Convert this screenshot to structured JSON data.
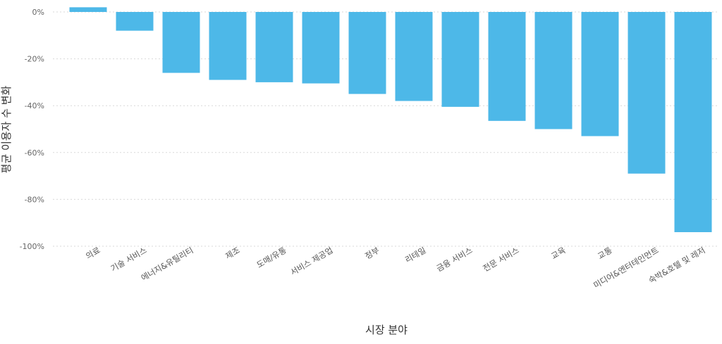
{
  "colors": {
    "bar": "#4db8e8",
    "grid": "#d9d9d9",
    "text": "#666666"
  },
  "chart_data": {
    "type": "bar",
    "xlabel": "시장 분야",
    "ylabel": "평균 이용자 수 변화",
    "ylim": [
      -100,
      0
    ],
    "yticks": [
      "0%",
      "-20%",
      "-40%",
      "-60%",
      "-80%",
      "-100%"
    ],
    "ytick_values": [
      0,
      -20,
      -40,
      -60,
      -80,
      -100
    ],
    "grid": true,
    "categories": [
      "의료",
      "기술 서비스",
      "에너지&유틸리티",
      "제조",
      "도매/유통",
      "서비스 제공업",
      "정부",
      "리테일",
      "금융 서비스",
      "전문 서비스",
      "교육",
      "교통",
      "미디어&엔터테인먼트",
      "숙박&호텔 및 레저"
    ],
    "values": [
      2,
      -8,
      -26,
      -29,
      -30,
      -30.5,
      -35,
      -38,
      -40.5,
      -46.5,
      -50,
      -53,
      -69,
      -94
    ]
  }
}
